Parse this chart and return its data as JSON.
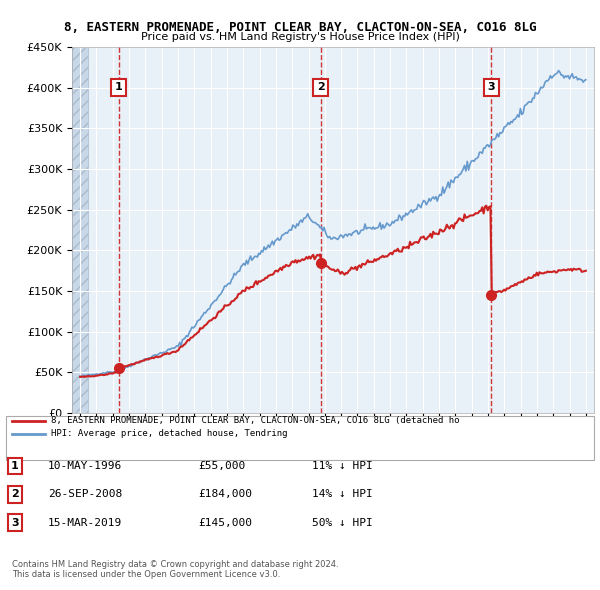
{
  "title": "8, EASTERN PROMENADE, POINT CLEAR BAY, CLACTON-ON-SEA, CO16 8LG",
  "subtitle": "Price paid vs. HM Land Registry's House Price Index (HPI)",
  "ylabel": "",
  "ylim": [
    0,
    450000
  ],
  "yticks": [
    0,
    50000,
    100000,
    150000,
    200000,
    250000,
    300000,
    350000,
    400000,
    450000
  ],
  "ytick_labels": [
    "£0",
    "£50K",
    "£100K",
    "£150K",
    "£200K",
    "£250K",
    "£300K",
    "£350K",
    "£400K",
    "£450K"
  ],
  "xlim_start": 1993.5,
  "xlim_end": 2025.5,
  "hpi_color": "#6699cc",
  "price_color": "#cc2222",
  "sale_points": [
    {
      "year": 1996.36,
      "price": 55000,
      "label": "1"
    },
    {
      "year": 2008.74,
      "price": 184000,
      "label": "2"
    },
    {
      "year": 2019.21,
      "price": 145000,
      "label": "3"
    }
  ],
  "legend_line1": "8, EASTERN PROMENADE, POINT CLEAR BAY, CLACTON-ON-SEA, CO16 8LG (detached ho",
  "legend_line2": "HPI: Average price, detached house, Tendring",
  "table_data": [
    {
      "num": "1",
      "date": "10-MAY-1996",
      "price": "£55,000",
      "hpi": "11% ↓ HPI"
    },
    {
      "num": "2",
      "date": "26-SEP-2008",
      "price": "£184,000",
      "hpi": "14% ↓ HPI"
    },
    {
      "num": "3",
      "date": "15-MAR-2019",
      "price": "£145,000",
      "hpi": "50% ↓ HPI"
    }
  ],
  "footer": "Contains HM Land Registry data © Crown copyright and database right 2024.\nThis data is licensed under the Open Government Licence v3.0.",
  "background_color": "#e8f0f8",
  "hatch_color": "#c8d8e8"
}
